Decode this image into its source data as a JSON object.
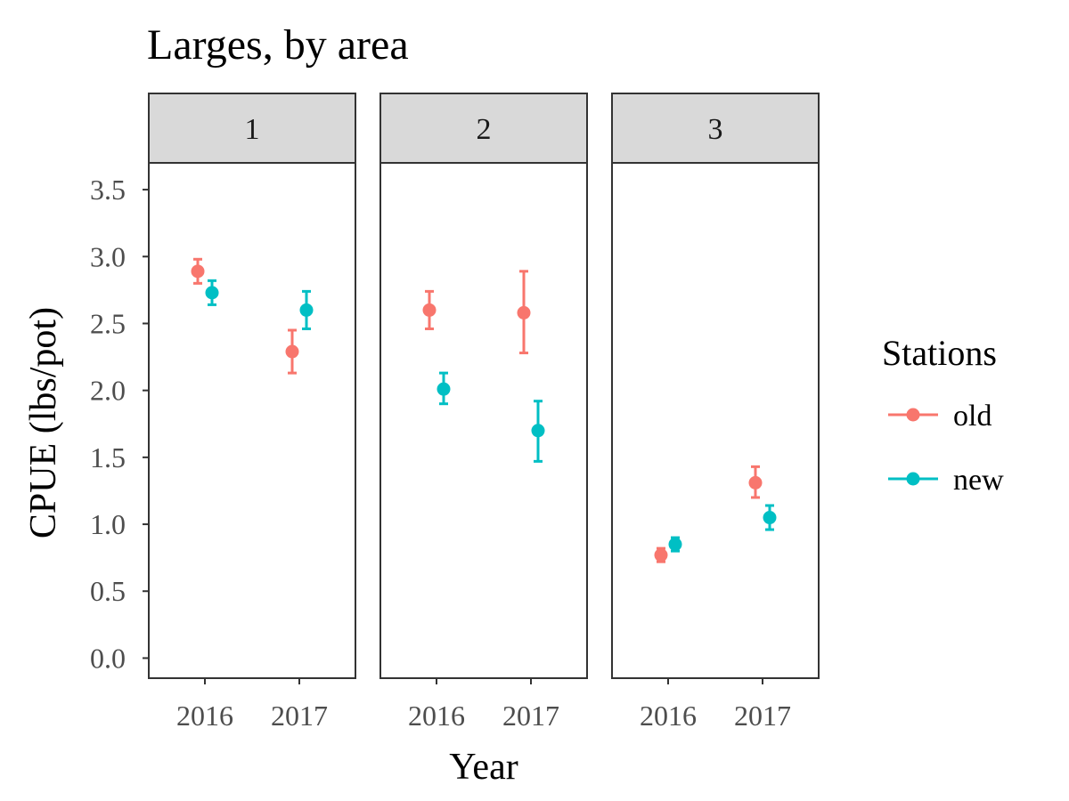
{
  "chart_data": {
    "type": "scatter",
    "title": "Larges, by area",
    "xlabel": "Year",
    "ylabel": "CPUE (lbs/pot)",
    "ylim": [
      -0.15,
      3.7
    ],
    "yticks": [
      "0.0",
      "0.5",
      "1.0",
      "1.5",
      "2.0",
      "2.5",
      "3.0",
      "3.5"
    ],
    "categories": [
      "2016",
      "2017"
    ],
    "facets": [
      "1",
      "2",
      "3"
    ],
    "legend": {
      "title": "Stations",
      "position": "right",
      "entries": [
        {
          "name": "old",
          "color": "#F8766D"
        },
        {
          "name": "new",
          "color": "#00BFC4"
        }
      ]
    },
    "grid": false,
    "series": [
      {
        "name": "old",
        "color": "#F8766D",
        "points": [
          {
            "facet": "1",
            "x": "2016",
            "y": 2.89,
            "lo": 2.8,
            "hi": 2.98
          },
          {
            "facet": "1",
            "x": "2017",
            "y": 2.29,
            "lo": 2.13,
            "hi": 2.45
          },
          {
            "facet": "2",
            "x": "2016",
            "y": 2.6,
            "lo": 2.46,
            "hi": 2.74
          },
          {
            "facet": "2",
            "x": "2017",
            "y": 2.58,
            "lo": 2.28,
            "hi": 2.89
          },
          {
            "facet": "3",
            "x": "2016",
            "y": 0.77,
            "lo": 0.72,
            "hi": 0.82
          },
          {
            "facet": "3",
            "x": "2017",
            "y": 1.31,
            "lo": 1.2,
            "hi": 1.43
          }
        ]
      },
      {
        "name": "new",
        "color": "#00BFC4",
        "points": [
          {
            "facet": "1",
            "x": "2016",
            "y": 2.73,
            "lo": 2.64,
            "hi": 2.82
          },
          {
            "facet": "1",
            "x": "2017",
            "y": 2.6,
            "lo": 2.46,
            "hi": 2.74
          },
          {
            "facet": "2",
            "x": "2016",
            "y": 2.01,
            "lo": 1.9,
            "hi": 2.13
          },
          {
            "facet": "2",
            "x": "2017",
            "y": 1.7,
            "lo": 1.47,
            "hi": 1.92
          },
          {
            "facet": "3",
            "x": "2016",
            "y": 0.85,
            "lo": 0.8,
            "hi": 0.9
          },
          {
            "facet": "3",
            "x": "2017",
            "y": 1.05,
            "lo": 0.96,
            "hi": 1.14
          }
        ]
      }
    ]
  }
}
